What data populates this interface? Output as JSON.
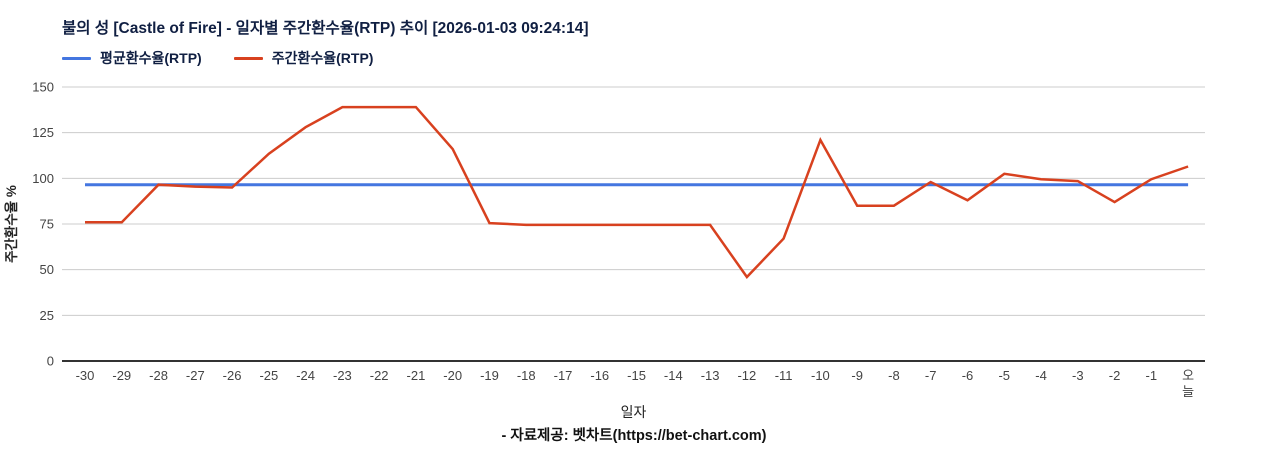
{
  "title": "불의 성 [Castle of Fire] - 일자별 주간환수율(RTP) 추이 [2026-01-03 09:24:14]",
  "legend": [
    {
      "label": "평균환수율(RTP)",
      "color": "#4476E0"
    },
    {
      "label": "주간환수율(RTP)",
      "color": "#D8411F"
    }
  ],
  "footer": "- 자료제공: 벳차트(https://bet-chart.com)",
  "colors": {
    "average_line": "#4476E0",
    "weekly_line": "#D8411F",
    "gridline": "#cccccc",
    "axis_line": "#333333",
    "tick_label": "#444444",
    "axis_title": "#222222"
  },
  "chart_data": {
    "type": "line",
    "title": "불의 성 [Castle of Fire] - 일자별 주간환수율(RTP) 추이 [2026-01-03 09:24:14]",
    "xlabel": "일자",
    "ylabel": "주간환수율 %",
    "ylim": [
      0,
      150
    ],
    "yticks": [
      0,
      25,
      50,
      75,
      100,
      125,
      150
    ],
    "grid": true,
    "legend_position": "top-left",
    "categories": [
      "-30",
      "-29",
      "-28",
      "-27",
      "-26",
      "-25",
      "-24",
      "-23",
      "-22",
      "-21",
      "-20",
      "-19",
      "-18",
      "-17",
      "-16",
      "-15",
      "-14",
      "-13",
      "-12",
      "-11",
      "-10",
      "-9",
      "-8",
      "-7",
      "-6",
      "-5",
      "-4",
      "-3",
      "-2",
      "-1",
      "오늘"
    ],
    "series": [
      {
        "name": "평균환수율(RTP)",
        "color": "#4476E0",
        "values": [
          96.5,
          96.5,
          96.5,
          96.5,
          96.5,
          96.5,
          96.5,
          96.5,
          96.5,
          96.5,
          96.5,
          96.5,
          96.5,
          96.5,
          96.5,
          96.5,
          96.5,
          96.5,
          96.5,
          96.5,
          96.5,
          96.5,
          96.5,
          96.5,
          96.5,
          96.5,
          96.5,
          96.5,
          96.5,
          96.5,
          96.5
        ]
      },
      {
        "name": "주간환수율(RTP)",
        "color": "#D8411F",
        "values": [
          76,
          76,
          96.5,
          95.5,
          95,
          113.5,
          128,
          139,
          139,
          139,
          116,
          75.5,
          74.5,
          74.5,
          74.5,
          74.5,
          74.5,
          74.5,
          46,
          67,
          121,
          85,
          85,
          98,
          88,
          102.5,
          99.5,
          98.5,
          87,
          99.5,
          106.5
        ]
      }
    ]
  }
}
